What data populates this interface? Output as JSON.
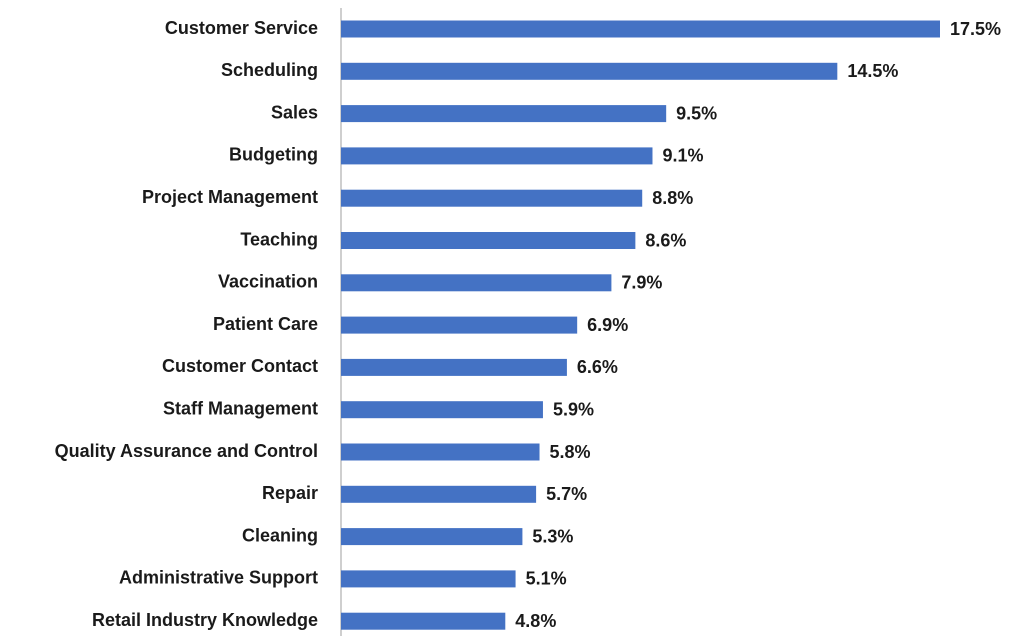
{
  "chart_data": {
    "type": "bar",
    "orientation": "horizontal",
    "color": "#4472c4",
    "categories": [
      "Customer Service",
      "Scheduling",
      "Sales",
      "Budgeting",
      "Project Management",
      "Teaching",
      "Vaccination",
      "Patient Care",
      "Customer Contact",
      "Staff Management",
      "Quality Assurance and Control",
      "Repair",
      "Cleaning",
      "Administrative Support",
      "Retail Industry Knowledge"
    ],
    "values": [
      17.5,
      14.5,
      9.5,
      9.1,
      8.8,
      8.6,
      7.9,
      6.9,
      6.6,
      5.9,
      5.8,
      5.7,
      5.3,
      5.1,
      4.8
    ],
    "value_labels": [
      "17.5%",
      "14.5%",
      "9.5%",
      "9.1%",
      "8.8%",
      "8.6%",
      "7.9%",
      "6.9%",
      "6.6%",
      "5.9%",
      "5.8%",
      "5.7%",
      "5.3%",
      "5.1%",
      "4.8%"
    ]
  }
}
